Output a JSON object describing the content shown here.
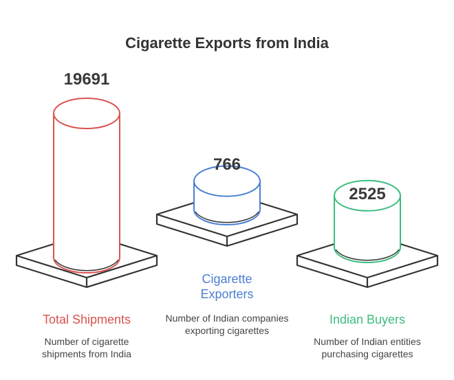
{
  "chart_data": {
    "type": "bar",
    "title": "Cigarette Exports from India",
    "categories": [
      "Total Shipments",
      "Cigarette Exporters",
      "Indian Buyers"
    ],
    "values": [
      19691,
      766,
      2525
    ],
    "descriptions": [
      "Number of cigarette shipments from India",
      "Number of Indian companies exporting cigarettes",
      "Number of Indian entities purchasing cigarettes"
    ],
    "colors": [
      "#d9534f",
      "#4a7fd4",
      "#3dbd7d"
    ]
  }
}
